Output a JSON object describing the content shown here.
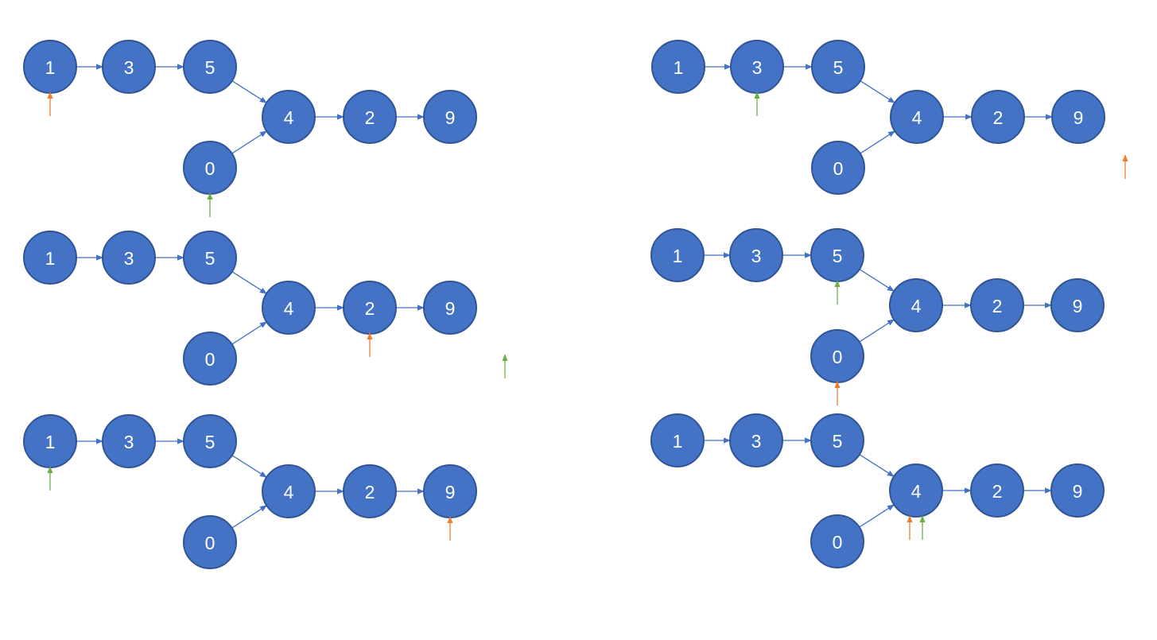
{
  "colors": {
    "node_fill": "#4472c4",
    "node_border": "#2f5597",
    "edge": "#4472c4",
    "pointer_a": "#ed7d31",
    "pointer_b": "#70ad47"
  },
  "diagrams": [
    {
      "nodes": [
        {
          "id": "n1",
          "label": "1"
        },
        {
          "id": "n3",
          "label": "3"
        },
        {
          "id": "n5",
          "label": "5"
        },
        {
          "id": "n4",
          "label": "4"
        },
        {
          "id": "n2",
          "label": "2"
        },
        {
          "id": "n9",
          "label": "9"
        },
        {
          "id": "n0",
          "label": "0"
        }
      ],
      "edges": [
        [
          "n1",
          "n3"
        ],
        [
          "n3",
          "n5"
        ],
        [
          "n5",
          "n4"
        ],
        [
          "n0",
          "n4"
        ],
        [
          "n4",
          "n2"
        ],
        [
          "n2",
          "n9"
        ]
      ],
      "pointers": [
        {
          "color": "pointer_a",
          "at": "n1"
        },
        {
          "color": "pointer_b",
          "at": "n0"
        }
      ]
    },
    {
      "nodes": [
        {
          "id": "n1",
          "label": "1"
        },
        {
          "id": "n3",
          "label": "3"
        },
        {
          "id": "n5",
          "label": "5"
        },
        {
          "id": "n4",
          "label": "4"
        },
        {
          "id": "n2",
          "label": "2"
        },
        {
          "id": "n9",
          "label": "9"
        },
        {
          "id": "n0",
          "label": "0"
        }
      ],
      "edges": [
        [
          "n1",
          "n3"
        ],
        [
          "n3",
          "n5"
        ],
        [
          "n5",
          "n4"
        ],
        [
          "n0",
          "n4"
        ],
        [
          "n4",
          "n2"
        ],
        [
          "n2",
          "n9"
        ]
      ],
      "pointers": [
        {
          "color": "pointer_a",
          "at": "n2"
        },
        {
          "color": "pointer_b",
          "at": "null"
        }
      ]
    },
    {
      "nodes": [
        {
          "id": "n1",
          "label": "1"
        },
        {
          "id": "n3",
          "label": "3"
        },
        {
          "id": "n5",
          "label": "5"
        },
        {
          "id": "n4",
          "label": "4"
        },
        {
          "id": "n2",
          "label": "2"
        },
        {
          "id": "n9",
          "label": "9"
        },
        {
          "id": "n0",
          "label": "0"
        }
      ],
      "edges": [
        [
          "n1",
          "n3"
        ],
        [
          "n3",
          "n5"
        ],
        [
          "n5",
          "n4"
        ],
        [
          "n0",
          "n4"
        ],
        [
          "n4",
          "n2"
        ],
        [
          "n2",
          "n9"
        ]
      ],
      "pointers": [
        {
          "color": "pointer_a",
          "at": "n9"
        },
        {
          "color": "pointer_b",
          "at": "n1"
        }
      ]
    },
    {
      "nodes": [
        {
          "id": "n1",
          "label": "1"
        },
        {
          "id": "n3",
          "label": "3"
        },
        {
          "id": "n5",
          "label": "5"
        },
        {
          "id": "n4",
          "label": "4"
        },
        {
          "id": "n2",
          "label": "2"
        },
        {
          "id": "n9",
          "label": "9"
        },
        {
          "id": "n0",
          "label": "0"
        }
      ],
      "edges": [
        [
          "n1",
          "n3"
        ],
        [
          "n3",
          "n5"
        ],
        [
          "n5",
          "n4"
        ],
        [
          "n0",
          "n4"
        ],
        [
          "n4",
          "n2"
        ],
        [
          "n2",
          "n9"
        ]
      ],
      "pointers": [
        {
          "color": "pointer_b",
          "at": "n3"
        },
        {
          "color": "pointer_a",
          "at": "null"
        }
      ]
    },
    {
      "nodes": [
        {
          "id": "n1",
          "label": "1"
        },
        {
          "id": "n3",
          "label": "3"
        },
        {
          "id": "n5",
          "label": "5"
        },
        {
          "id": "n4",
          "label": "4"
        },
        {
          "id": "n2",
          "label": "2"
        },
        {
          "id": "n9",
          "label": "9"
        },
        {
          "id": "n0",
          "label": "0"
        }
      ],
      "edges": [
        [
          "n1",
          "n3"
        ],
        [
          "n3",
          "n5"
        ],
        [
          "n5",
          "n4"
        ],
        [
          "n0",
          "n4"
        ],
        [
          "n4",
          "n2"
        ],
        [
          "n2",
          "n9"
        ]
      ],
      "pointers": [
        {
          "color": "pointer_b",
          "at": "n5"
        },
        {
          "color": "pointer_a",
          "at": "n0"
        }
      ]
    },
    {
      "nodes": [
        {
          "id": "n1",
          "label": "1"
        },
        {
          "id": "n3",
          "label": "3"
        },
        {
          "id": "n5",
          "label": "5"
        },
        {
          "id": "n4",
          "label": "4"
        },
        {
          "id": "n2",
          "label": "2"
        },
        {
          "id": "n9",
          "label": "9"
        },
        {
          "id": "n0",
          "label": "0"
        }
      ],
      "edges": [
        [
          "n1",
          "n3"
        ],
        [
          "n3",
          "n5"
        ],
        [
          "n5",
          "n4"
        ],
        [
          "n0",
          "n4"
        ],
        [
          "n4",
          "n2"
        ],
        [
          "n2",
          "n9"
        ]
      ],
      "pointers": [
        {
          "color": "pointer_a",
          "at": "n4"
        },
        {
          "color": "pointer_b",
          "at": "n4"
        }
      ]
    }
  ]
}
